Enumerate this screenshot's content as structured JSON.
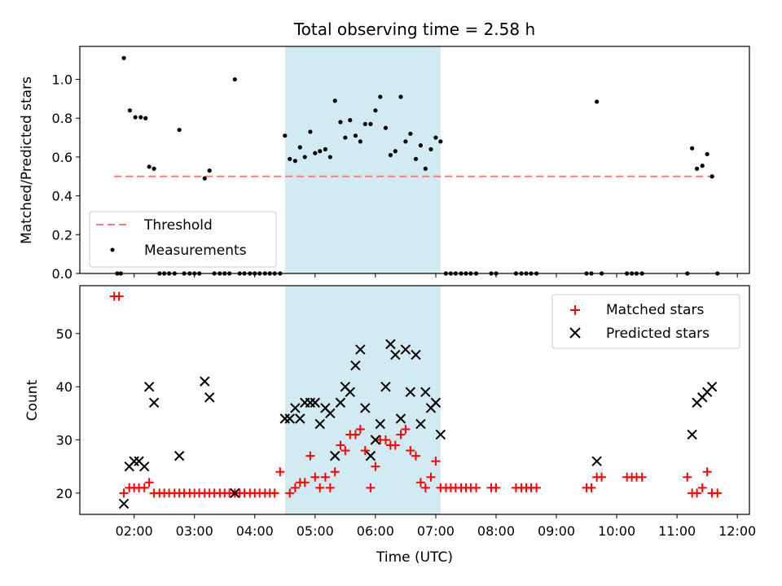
{
  "chart_data": {
    "title": "Total observing time = 2.58 h",
    "x_axis": {
      "label": "Time (UTC)",
      "range_hours": [
        1.1,
        12.2
      ],
      "ticks": [
        {
          "value": 2,
          "label": "02:00"
        },
        {
          "value": 3,
          "label": "03:00"
        },
        {
          "value": 4,
          "label": "04:00"
        },
        {
          "value": 5,
          "label": "05:00"
        },
        {
          "value": 6,
          "label": "06:00"
        },
        {
          "value": 7,
          "label": "07:00"
        },
        {
          "value": 8,
          "label": "08:00"
        },
        {
          "value": 9,
          "label": "09:00"
        },
        {
          "value": 10,
          "label": "10:00"
        },
        {
          "value": 11,
          "label": "11:00"
        },
        {
          "value": 12,
          "label": "12:00"
        }
      ]
    },
    "shaded_interval_hours": [
      4.5,
      7.08
    ],
    "top": {
      "type": "scatter",
      "ylabel": "Matched/Predicted stars",
      "ylim": [
        0,
        1.17
      ],
      "yticks": [
        {
          "value": 0.0,
          "label": "0.0"
        },
        {
          "value": 0.2,
          "label": "0.2"
        },
        {
          "value": 0.4,
          "label": "0.4"
        },
        {
          "value": 0.6,
          "label": "0.6"
        },
        {
          "value": 0.8,
          "label": "0.8"
        },
        {
          "value": 1.0,
          "label": "1.0"
        }
      ],
      "legend_position": "lower-left",
      "threshold": {
        "name": "Threshold",
        "value": 0.5,
        "x_range": [
          1.67,
          11.65
        ],
        "color": "#f08080"
      },
      "measurements": {
        "name": "Measurements",
        "color": "#000000",
        "points": [
          [
            1.72,
            0
          ],
          [
            1.78,
            0
          ],
          [
            1.83,
            1.11
          ],
          [
            1.93,
            0.84
          ],
          [
            2.02,
            0.805
          ],
          [
            2.11,
            0.805
          ],
          [
            2.19,
            0.8
          ],
          [
            2.25,
            0.55
          ],
          [
            2.33,
            0.54
          ],
          [
            2.42,
            0
          ],
          [
            2.5,
            0
          ],
          [
            2.58,
            0
          ],
          [
            2.67,
            0
          ],
          [
            2.75,
            0.74
          ],
          [
            2.83,
            0
          ],
          [
            2.92,
            0
          ],
          [
            3.0,
            0
          ],
          [
            3.08,
            0
          ],
          [
            3.17,
            0.49
          ],
          [
            3.25,
            0.53
          ],
          [
            3.33,
            0
          ],
          [
            3.42,
            0
          ],
          [
            3.5,
            0
          ],
          [
            3.58,
            0
          ],
          [
            3.67,
            1.0
          ],
          [
            3.75,
            0
          ],
          [
            3.83,
            0
          ],
          [
            3.92,
            0
          ],
          [
            4.0,
            0
          ],
          [
            4.08,
            0
          ],
          [
            4.17,
            0
          ],
          [
            4.25,
            0
          ],
          [
            4.33,
            0
          ],
          [
            4.42,
            0
          ],
          [
            4.5,
            0.71
          ],
          [
            4.58,
            0.59
          ],
          [
            4.67,
            0.58
          ],
          [
            4.75,
            0.65
          ],
          [
            4.83,
            0.6
          ],
          [
            4.92,
            0.73
          ],
          [
            5.0,
            0.62
          ],
          [
            5.08,
            0.63
          ],
          [
            5.17,
            0.64
          ],
          [
            5.25,
            0.6
          ],
          [
            5.33,
            0.89
          ],
          [
            5.42,
            0.78
          ],
          [
            5.5,
            0.7
          ],
          [
            5.58,
            0.79
          ],
          [
            5.67,
            0.71
          ],
          [
            5.75,
            0.68
          ],
          [
            5.83,
            0.77
          ],
          [
            5.92,
            0.77
          ],
          [
            6.0,
            0.84
          ],
          [
            6.08,
            0.91
          ],
          [
            6.17,
            0.75
          ],
          [
            6.25,
            0.61
          ],
          [
            6.33,
            0.63
          ],
          [
            6.42,
            0.91
          ],
          [
            6.5,
            0.68
          ],
          [
            6.58,
            0.72
          ],
          [
            6.67,
            0.59
          ],
          [
            6.75,
            0.66
          ],
          [
            6.83,
            0.54
          ],
          [
            6.92,
            0.64
          ],
          [
            7.0,
            0.7
          ],
          [
            7.08,
            0.68
          ],
          [
            7.17,
            0
          ],
          [
            7.25,
            0
          ],
          [
            7.33,
            0
          ],
          [
            7.42,
            0
          ],
          [
            7.5,
            0
          ],
          [
            7.58,
            0
          ],
          [
            7.67,
            0
          ],
          [
            7.92,
            0
          ],
          [
            8.0,
            0
          ],
          [
            8.33,
            0
          ],
          [
            8.42,
            0
          ],
          [
            8.5,
            0
          ],
          [
            8.58,
            0
          ],
          [
            8.67,
            0
          ],
          [
            9.5,
            0
          ],
          [
            9.58,
            0
          ],
          [
            9.67,
            0.885
          ],
          [
            9.75,
            0
          ],
          [
            10.17,
            0
          ],
          [
            10.25,
            0
          ],
          [
            10.33,
            0
          ],
          [
            10.42,
            0
          ],
          [
            11.17,
            0
          ],
          [
            11.25,
            0.645
          ],
          [
            11.33,
            0.54
          ],
          [
            11.42,
            0.555
          ],
          [
            11.5,
            0.615
          ],
          [
            11.58,
            0.5
          ],
          [
            11.67,
            0
          ]
        ]
      }
    },
    "bottom": {
      "type": "scatter",
      "ylabel": "Count",
      "ylim": [
        16,
        59
      ],
      "yticks": [
        {
          "value": 20,
          "label": "20"
        },
        {
          "value": 30,
          "label": "30"
        },
        {
          "value": 40,
          "label": "40"
        },
        {
          "value": 50,
          "label": "50"
        }
      ],
      "legend_position": "top-right",
      "series": [
        {
          "name": "Matched stars",
          "marker": "plus",
          "color": "#ff0000",
          "points": [
            [
              1.67,
              57
            ],
            [
              1.75,
              57
            ],
            [
              1.83,
              20
            ],
            [
              1.92,
              21
            ],
            [
              2.0,
              21
            ],
            [
              2.08,
              21
            ],
            [
              2.17,
              21
            ],
            [
              2.25,
              22
            ],
            [
              2.33,
              20
            ],
            [
              2.42,
              20
            ],
            [
              2.5,
              20
            ],
            [
              2.58,
              20
            ],
            [
              2.67,
              20
            ],
            [
              2.75,
              20
            ],
            [
              2.83,
              20
            ],
            [
              2.92,
              20
            ],
            [
              3.0,
              20
            ],
            [
              3.08,
              20
            ],
            [
              3.17,
              20
            ],
            [
              3.25,
              20
            ],
            [
              3.33,
              20
            ],
            [
              3.42,
              20
            ],
            [
              3.5,
              20
            ],
            [
              3.58,
              20
            ],
            [
              3.67,
              20
            ],
            [
              3.75,
              20
            ],
            [
              3.83,
              20
            ],
            [
              3.92,
              20
            ],
            [
              4.0,
              20
            ],
            [
              4.08,
              20
            ],
            [
              4.17,
              20
            ],
            [
              4.25,
              20
            ],
            [
              4.33,
              20
            ],
            [
              4.42,
              24
            ],
            [
              4.58,
              20
            ],
            [
              4.67,
              21
            ],
            [
              4.75,
              22
            ],
            [
              4.83,
              22
            ],
            [
              4.92,
              27
            ],
            [
              5.0,
              23
            ],
            [
              5.08,
              21
            ],
            [
              5.17,
              23
            ],
            [
              5.25,
              21
            ],
            [
              5.33,
              24
            ],
            [
              5.42,
              29
            ],
            [
              5.5,
              28
            ],
            [
              5.58,
              31
            ],
            [
              5.67,
              31
            ],
            [
              5.75,
              32
            ],
            [
              5.83,
              28
            ],
            [
              5.92,
              21
            ],
            [
              6.0,
              25
            ],
            [
              6.08,
              30
            ],
            [
              6.17,
              30
            ],
            [
              6.25,
              29
            ],
            [
              6.33,
              29
            ],
            [
              6.42,
              31
            ],
            [
              6.5,
              32
            ],
            [
              6.58,
              28
            ],
            [
              6.67,
              27
            ],
            [
              6.75,
              22
            ],
            [
              6.83,
              21
            ],
            [
              6.92,
              23
            ],
            [
              7.0,
              26
            ],
            [
              7.08,
              21
            ],
            [
              7.17,
              21
            ],
            [
              7.25,
              21
            ],
            [
              7.33,
              21
            ],
            [
              7.42,
              21
            ],
            [
              7.5,
              21
            ],
            [
              7.58,
              21
            ],
            [
              7.67,
              21
            ],
            [
              7.92,
              21
            ],
            [
              8.0,
              21
            ],
            [
              8.33,
              21
            ],
            [
              8.42,
              21
            ],
            [
              8.5,
              21
            ],
            [
              8.58,
              21
            ],
            [
              8.67,
              21
            ],
            [
              9.5,
              21
            ],
            [
              9.58,
              21
            ],
            [
              9.67,
              23
            ],
            [
              9.75,
              23
            ],
            [
              10.17,
              23
            ],
            [
              10.25,
              23
            ],
            [
              10.33,
              23
            ],
            [
              10.42,
              23
            ],
            [
              11.17,
              23
            ],
            [
              11.25,
              20
            ],
            [
              11.33,
              20
            ],
            [
              11.42,
              21
            ],
            [
              11.5,
              24
            ],
            [
              11.58,
              20
            ],
            [
              11.67,
              20
            ]
          ]
        },
        {
          "name": "Predicted stars",
          "marker": "x",
          "color": "#000000",
          "points": [
            [
              1.83,
              18
            ],
            [
              1.92,
              25
            ],
            [
              2.0,
              26
            ],
            [
              2.08,
              26
            ],
            [
              2.17,
              25
            ],
            [
              2.25,
              40
            ],
            [
              2.33,
              37
            ],
            [
              2.75,
              27
            ],
            [
              3.17,
              41
            ],
            [
              3.25,
              38
            ],
            [
              3.67,
              20
            ],
            [
              4.5,
              34
            ],
            [
              4.58,
              34
            ],
            [
              4.67,
              36
            ],
            [
              4.75,
              34
            ],
            [
              4.83,
              37
            ],
            [
              4.92,
              37
            ],
            [
              5.0,
              37
            ],
            [
              5.08,
              33
            ],
            [
              5.17,
              36
            ],
            [
              5.25,
              35
            ],
            [
              5.33,
              27
            ],
            [
              5.42,
              37
            ],
            [
              5.5,
              40
            ],
            [
              5.58,
              39
            ],
            [
              5.67,
              44
            ],
            [
              5.75,
              47
            ],
            [
              5.83,
              36
            ],
            [
              5.92,
              27
            ],
            [
              6.0,
              30
            ],
            [
              6.08,
              33
            ],
            [
              6.17,
              40
            ],
            [
              6.25,
              48
            ],
            [
              6.33,
              46
            ],
            [
              6.42,
              34
            ],
            [
              6.5,
              47
            ],
            [
              6.58,
              39
            ],
            [
              6.67,
              46
            ],
            [
              6.75,
              33
            ],
            [
              6.83,
              39
            ],
            [
              6.92,
              36
            ],
            [
              7.0,
              37
            ],
            [
              7.08,
              31
            ],
            [
              9.67,
              26
            ],
            [
              11.25,
              31
            ],
            [
              11.33,
              37
            ],
            [
              11.42,
              38
            ],
            [
              11.5,
              39
            ],
            [
              11.58,
              40
            ]
          ]
        }
      ]
    }
  }
}
